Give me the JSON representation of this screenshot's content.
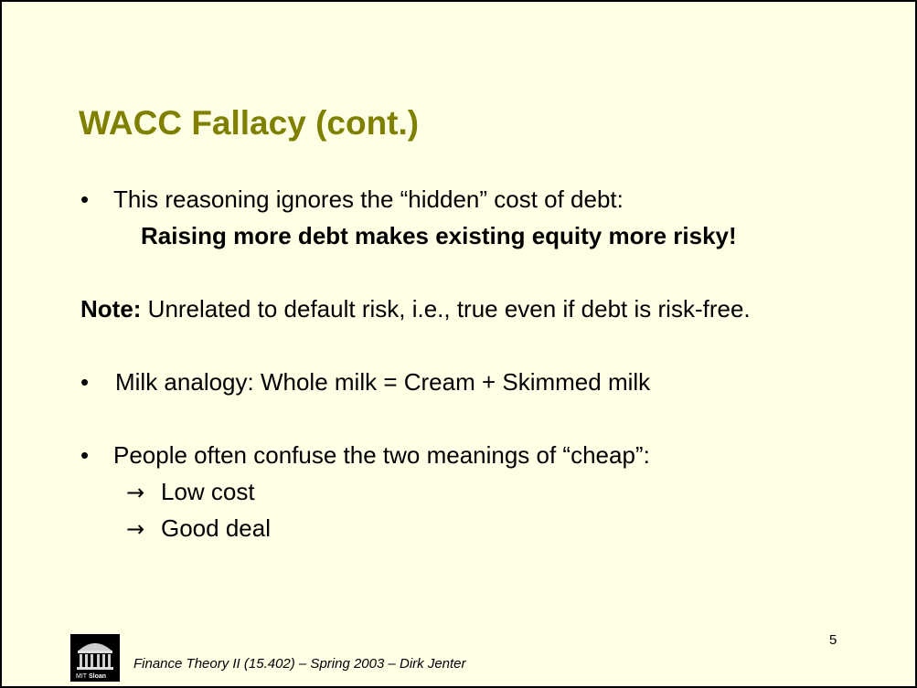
{
  "slide": {
    "title": "WACC Fallacy (cont.)",
    "bullet_char": "•",
    "items": [
      {
        "text": "This reasoning ignores the “hidden” cost of debt:"
      },
      {
        "text": "Raising more debt makes existing equity more risky!"
      },
      {
        "label": "Note:",
        "text": " Unrelated to default risk, i.e., true even if debt is risk-free."
      },
      {
        "text": "Milk analogy: Whole milk = Cream + Skimmed milk"
      },
      {
        "text": "People often confuse the two meanings of “cheap”:"
      },
      {
        "arrow": "→",
        "text": "Low cost"
      },
      {
        "arrow": "→",
        "text": "Good deal"
      }
    ],
    "page_number": "5",
    "footer": "Finance Theory II (15.402) – Spring 2003 – Dirk Jenter",
    "logo": {
      "icon": "mit-dome-icon",
      "text_mit": "MIT",
      "text_sloan": "Sloan"
    }
  }
}
